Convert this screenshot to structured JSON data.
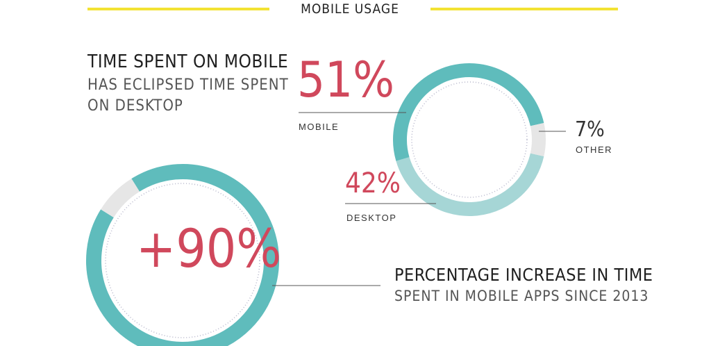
{
  "header": {
    "title": "MOBILE USAGE",
    "accent_color": "#f3e233"
  },
  "colors": {
    "teal": "#5fbcbc",
    "light_teal": "#a6d6d6",
    "gray": "#e6e6e6",
    "red": "#d0485c",
    "line": "#555555",
    "dots": "#b8b8cc"
  },
  "time_block": {
    "heading": "TIME SPENT ON MOBILE",
    "sub_line1": "HAS ECLIPSED TIME SPENT",
    "sub_line2": "ON DESKTOP"
  },
  "increase_block": {
    "heading": "PERCENTAGE INCREASE IN TIME",
    "sub": "SPENT IN MOBILE APPS SINCE 2013"
  },
  "chart_data": [
    {
      "type": "pie",
      "categories": [
        "MOBILE",
        "DESKTOP",
        "OTHER"
      ],
      "values": [
        51,
        42,
        7
      ],
      "value_labels": [
        "51%",
        "42%",
        "7%"
      ],
      "colors": [
        "#5fbcbc",
        "#a6d6d6",
        "#e6e6e6"
      ]
    },
    {
      "type": "pie",
      "value_label": "+90%",
      "value": 90,
      "colors": [
        "#5fbcbc",
        "#e6e6e6"
      ]
    }
  ]
}
